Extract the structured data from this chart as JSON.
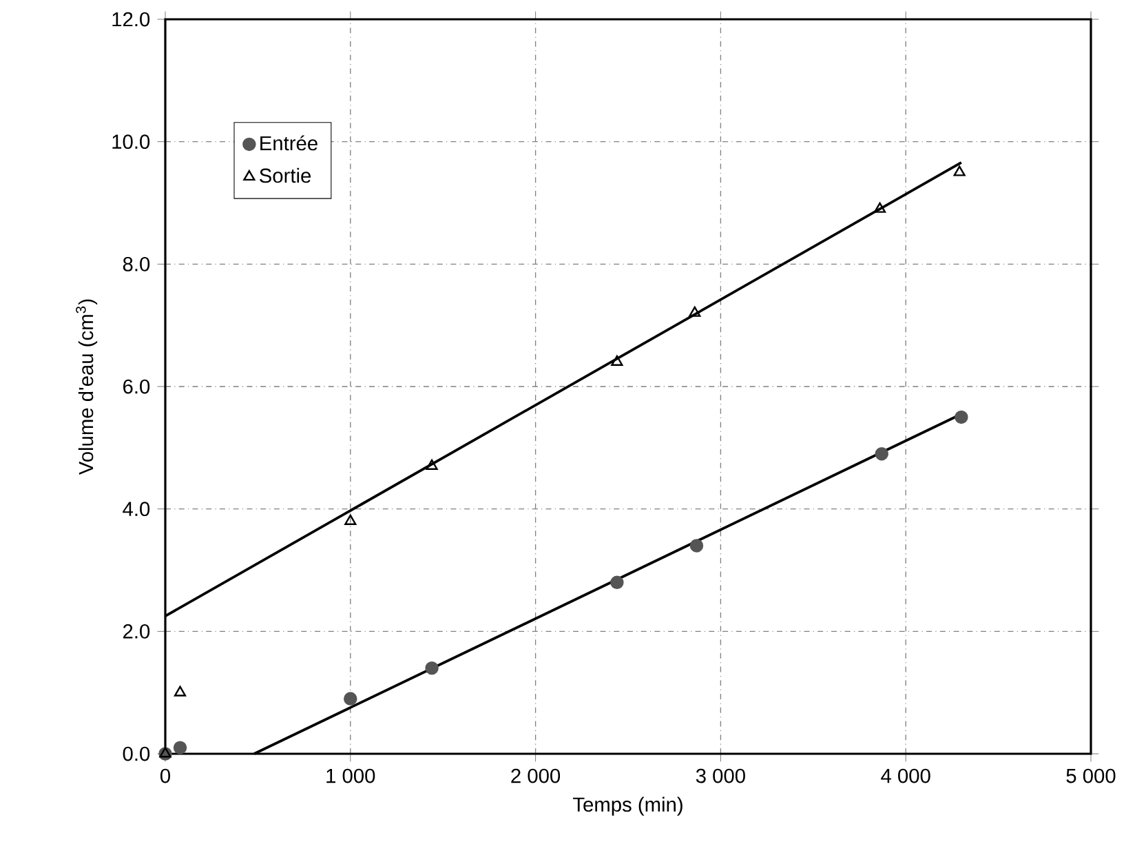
{
  "chart_data": {
    "type": "scatter",
    "xlabel": "Temps (min)",
    "ylabel": "Volume d'eau (cm$^{3}$)",
    "xlim": [
      0,
      5000
    ],
    "ylim": [
      0,
      12
    ],
    "xticks": [
      0,
      {
        "value": 1000,
        "label": "1 000"
      },
      {
        "value": 2000,
        "label": "2 000"
      },
      {
        "value": 3000,
        "label": "3 000"
      },
      {
        "value": 4000,
        "label": "4 000"
      },
      {
        "value": 5000,
        "label": "5 000"
      }
    ],
    "yticks": [
      {
        "value": 0,
        "label": "0.0"
      },
      {
        "value": 2,
        "label": "2.0"
      },
      {
        "value": 4,
        "label": "4.0"
      },
      {
        "value": 6,
        "label": "6.0"
      },
      {
        "value": 8,
        "label": "8.0"
      },
      {
        "value": 10,
        "label": "10.0"
      },
      {
        "value": 12,
        "label": "12.0"
      }
    ],
    "grid": true,
    "legend": "top left",
    "series": [
      {
        "name": "Entrée",
        "marker": "circle",
        "color": "#555555",
        "x": [
          0,
          80,
          1000,
          1440,
          2440,
          2870,
          3870,
          4300
        ],
        "values": [
          0,
          0.1,
          0.9,
          1.4,
          2.8,
          3.4,
          4.9,
          5.5
        ]
      },
      {
        "name": "Sortie",
        "marker": "triangle",
        "color": "#000000",
        "x": [
          0,
          80,
          1000,
          1440,
          2440,
          2860,
          3860,
          4290
        ],
        "values": [
          0,
          1.0,
          3.8,
          4.7,
          6.4,
          7.2,
          8.9,
          9.5
        ]
      },
      {
        "type": "line",
        "marker": "none",
        "line_style": "solid",
        "color": "#000000",
        "x": [
          480,
          4300
        ],
        "values": [
          0,
          5.55
        ]
      },
      {
        "type": "line",
        "marker": "none",
        "line_style": "solid",
        "color": "#000000",
        "x": [
          0,
          4300
        ],
        "values": [
          2.25,
          9.66
        ]
      }
    ]
  }
}
